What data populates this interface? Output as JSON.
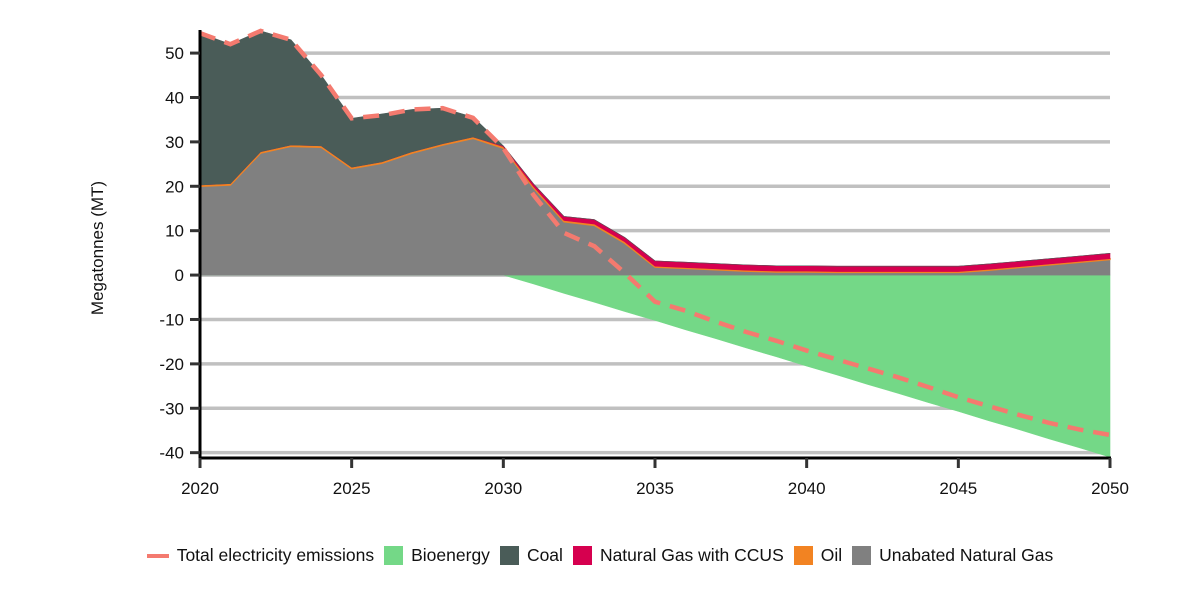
{
  "chart_data": {
    "type": "area",
    "title": "",
    "xlabel": "",
    "ylabel": "Megatonnes (MT)",
    "xlim": [
      2020,
      2050
    ],
    "ylim": [
      -41.2,
      55.2
    ],
    "x_ticks": [
      2020,
      2025,
      2030,
      2035,
      2040,
      2045,
      2050
    ],
    "y_ticks": [
      -40,
      -30,
      -20,
      -10,
      0,
      10,
      20,
      30,
      40,
      50
    ],
    "grid": "horizontal",
    "legend_position": "bottom",
    "x": [
      2020,
      2021,
      2022,
      2023,
      2024,
      2025,
      2026,
      2027,
      2028,
      2029,
      2030,
      2031,
      2032,
      2033,
      2034,
      2035,
      2036,
      2037,
      2038,
      2039,
      2040,
      2041,
      2042,
      2043,
      2044,
      2045,
      2046,
      2047,
      2048,
      2049,
      2050
    ],
    "series": [
      {
        "name": "Unabated Natural Gas",
        "kind": "area",
        "stack": "positive",
        "color": "#808080",
        "values": [
          20.0,
          20.3,
          27.5,
          29.0,
          28.8,
          24.0,
          25.2,
          27.5,
          29.3,
          30.8,
          28.6,
          19.6,
          12.0,
          11.2,
          7.2,
          1.8,
          1.5,
          1.2,
          0.9,
          0.7,
          0.7,
          0.6,
          0.6,
          0.6,
          0.6,
          0.6,
          1.1,
          1.7,
          2.3,
          2.9,
          3.5
        ]
      },
      {
        "name": "Oil",
        "kind": "area",
        "stack": "positive",
        "color": "#f28322",
        "values": [
          0.3,
          0.3,
          0.3,
          0.3,
          0.3,
          0.3,
          0.3,
          0.3,
          0.3,
          0.3,
          0.3,
          0.3,
          0.3,
          0.3,
          0.3,
          0.2,
          0.2,
          0.2,
          0.2,
          0.2,
          0.2,
          0.2,
          0.2,
          0.2,
          0.2,
          0.2,
          0.2,
          0.2,
          0.2,
          0.2,
          0.2
        ]
      },
      {
        "name": "Natural Gas with CCUS",
        "kind": "area",
        "stack": "positive",
        "color": "#d6004f",
        "values": [
          0,
          0,
          0,
          0,
          0,
          0,
          0,
          0,
          0,
          0,
          0.2,
          0.6,
          0.9,
          1.0,
          1.0,
          1.2,
          1.2,
          1.2,
          1.2,
          1.2,
          1.2,
          1.2,
          1.2,
          1.2,
          1.2,
          1.2,
          1.2,
          1.2,
          1.2,
          1.2,
          1.2
        ]
      },
      {
        "name": "Coal",
        "kind": "area",
        "stack": "positive",
        "color": "#4a5c58",
        "values": [
          34.2,
          31.4,
          27.2,
          23.7,
          15.9,
          11.0,
          10.8,
          9.5,
          8.0,
          4.5,
          0,
          0,
          0,
          0,
          0,
          0,
          0,
          0,
          0,
          0,
          0,
          0,
          0,
          0,
          0,
          0,
          0,
          0,
          0,
          0,
          0
        ]
      },
      {
        "name": "Bioenergy",
        "kind": "area",
        "stack": "negative",
        "color": "#74d887",
        "values": [
          0,
          0,
          0,
          0,
          0,
          0,
          0,
          0,
          0,
          0,
          0,
          -2.0,
          -4.1,
          -6.1,
          -8.2,
          -10.2,
          -12.3,
          -14.3,
          -16.4,
          -18.4,
          -20.5,
          -22.5,
          -24.6,
          -26.6,
          -28.7,
          -30.7,
          -32.8,
          -34.8,
          -36.9,
          -38.9,
          -41.0
        ]
      },
      {
        "name": "Total electricity emissions",
        "kind": "line",
        "dashed": true,
        "color": "#f47a6f",
        "values": [
          54.5,
          52.0,
          55.0,
          53.0,
          45.0,
          35.3,
          36.0,
          37.3,
          37.6,
          35.4,
          28.6,
          18.0,
          9.5,
          6.5,
          0.5,
          -6.0,
          -8.0,
          -10.5,
          -12.8,
          -14.8,
          -17.0,
          -19.0,
          -21.0,
          -23.0,
          -25.2,
          -27.5,
          -29.5,
          -31.5,
          -33.3,
          -34.8,
          -36.0
        ]
      }
    ],
    "legend": [
      {
        "label": "Total electricity emissions",
        "type": "line",
        "color": "#f47a6f"
      },
      {
        "label": "Bioenergy",
        "type": "box",
        "color": "#74d887"
      },
      {
        "label": "Coal",
        "type": "box",
        "color": "#4a5c58"
      },
      {
        "label": "Natural Gas with CCUS",
        "type": "box",
        "color": "#d6004f"
      },
      {
        "label": "Oil",
        "type": "box",
        "color": "#f28322"
      },
      {
        "label": "Unabated Natural Gas",
        "type": "box",
        "color": "#808080"
      }
    ]
  }
}
